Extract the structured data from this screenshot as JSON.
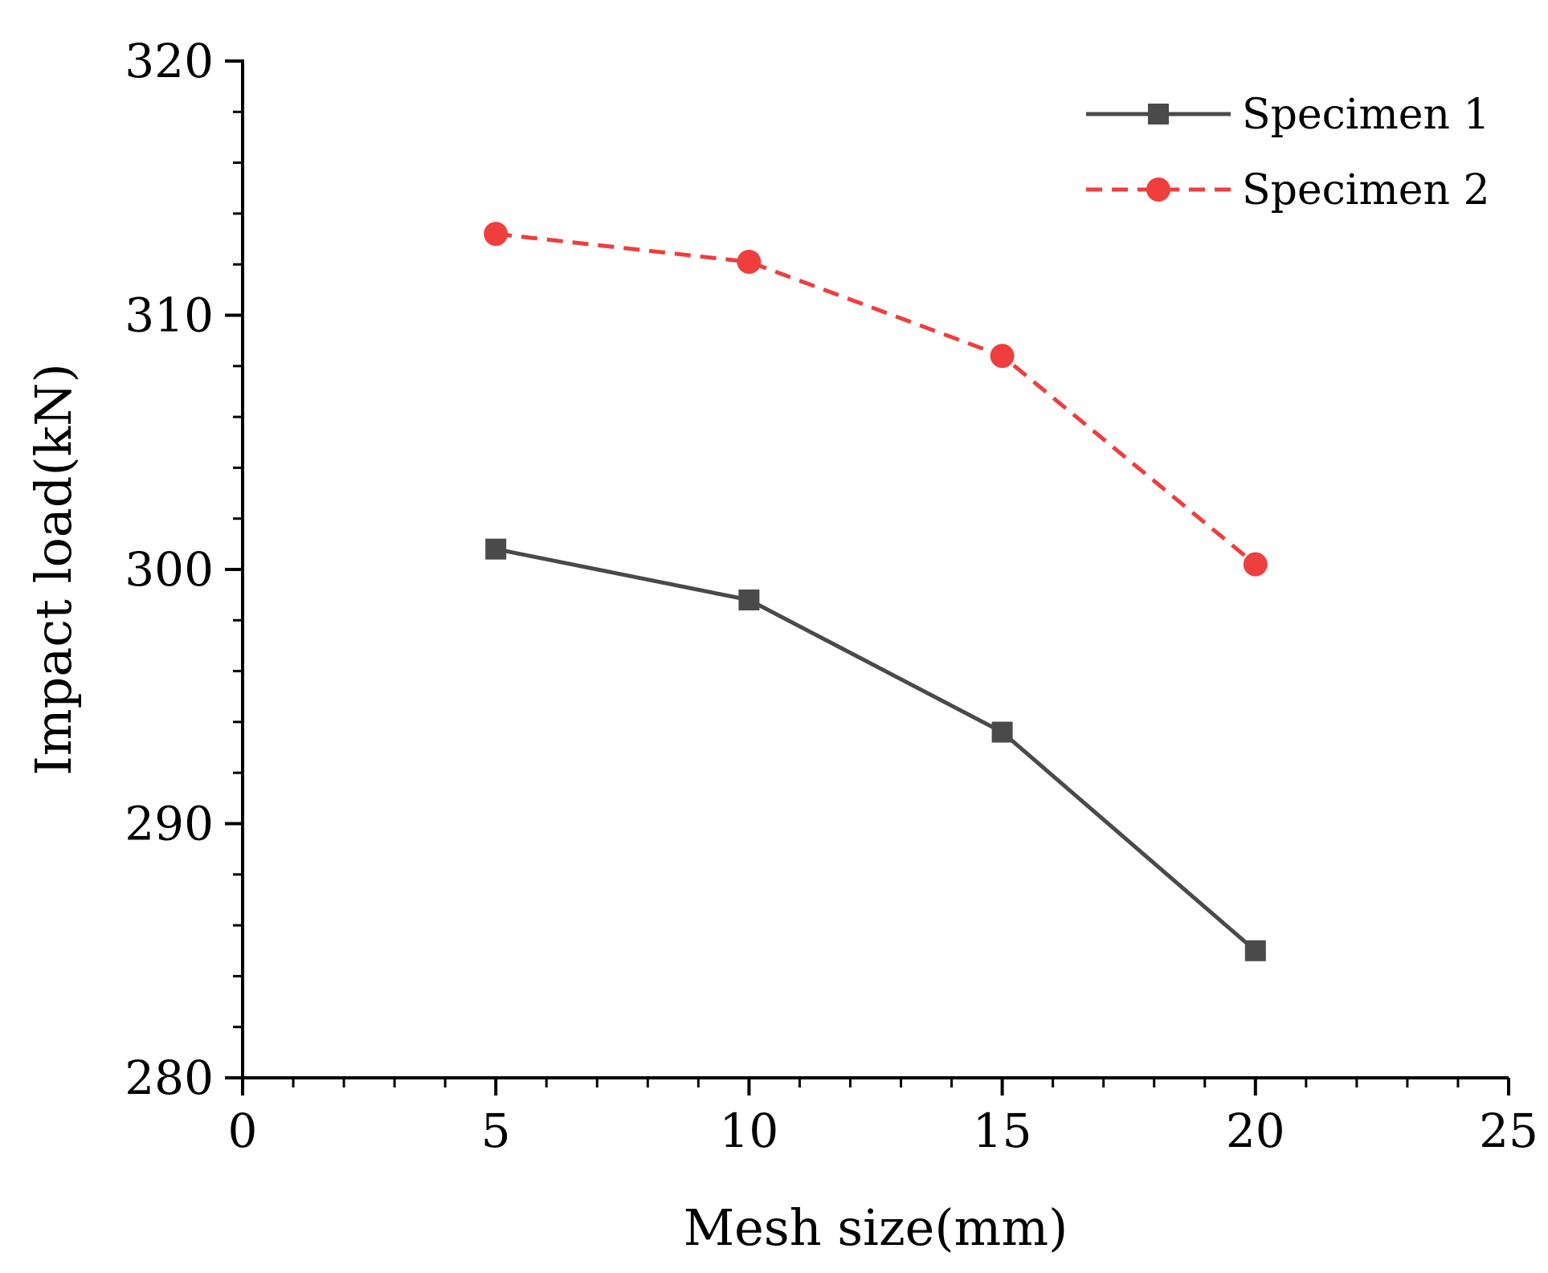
{
  "chart_data": {
    "type": "line",
    "title": "",
    "xlabel": "Mesh size(mm)",
    "ylabel": "Impact load(kN)",
    "xlim": [
      0,
      25
    ],
    "ylim": [
      280,
      320
    ],
    "x_ticks": [
      0,
      5,
      10,
      15,
      20,
      25
    ],
    "y_ticks": [
      280,
      290,
      300,
      310,
      320
    ],
    "x_tick_labels": [
      "0",
      "5",
      "10",
      "15",
      "20",
      "25"
    ],
    "y_tick_labels": [
      "280",
      "290",
      "300",
      "310",
      "320"
    ],
    "x_minor_step": 1,
    "y_minor_step": 2,
    "grid": false,
    "legend_position": "top-right",
    "series": [
      {
        "name": "Specimen 1",
        "x": [
          5,
          10,
          15,
          20
        ],
        "values": [
          300.8,
          298.8,
          293.6,
          285.0
        ],
        "color": "#4a4a4a",
        "line_style": "solid",
        "marker": "square"
      },
      {
        "name": "Specimen 2",
        "x": [
          5,
          10,
          15,
          20
        ],
        "values": [
          313.2,
          312.1,
          308.4,
          300.2
        ],
        "color": "#ee3e3e",
        "line_style": "dashed",
        "marker": "circle"
      }
    ]
  }
}
